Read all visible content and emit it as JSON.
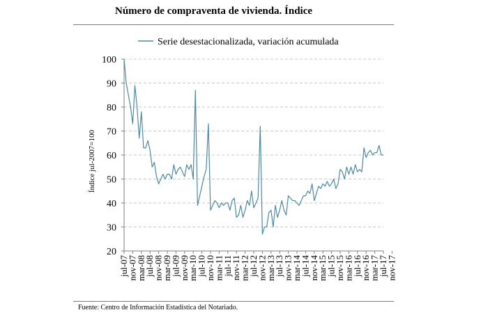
{
  "header": {
    "title": "Número de compraventa de vivienda. Índice"
  },
  "footer": {
    "source": "Fuente: Centro de Información Estadística del Notariado."
  },
  "colors": {
    "series": "#4a8aa5",
    "rule": "#4a8aa5",
    "grid": "#c8c8c8",
    "axis": "#7f7f7f"
  },
  "chart_data": {
    "type": "line",
    "title": "Número de compraventa de vivienda. Índice",
    "xlabel": "",
    "ylabel": "Índice jul-2007=100",
    "ylim": [
      20,
      100
    ],
    "yticks": [
      20,
      30,
      40,
      50,
      60,
      70,
      80,
      90,
      100
    ],
    "grid": true,
    "legend_position": "top",
    "x_tick_labels": [
      "jul-07",
      "nov-07",
      "mar-08",
      "jul-08",
      "nov-08",
      "mar-09",
      "jul-09",
      "nov-09",
      "mar-10",
      "jul-10",
      "nov-10",
      "mar-11",
      "jul-11",
      "nov-11",
      "mar-12",
      "jul-12",
      "nov-12",
      "mar-13",
      "jul-13",
      "nov-13",
      "mar-14",
      "jul-14",
      "nov-14",
      "mar-15",
      "jul-15",
      "nov-15",
      "mar-16",
      "jul-16",
      "nov-16",
      "mar-17",
      "jul-17",
      "nov-17"
    ],
    "series": [
      {
        "name": "Serie desestacionalizada, variación acumulada",
        "values": [
          100,
          90,
          85,
          80,
          73,
          89,
          80,
          67,
          78,
          63,
          63,
          66,
          62,
          55,
          57,
          51,
          48,
          50,
          52,
          50,
          52,
          52,
          50,
          56,
          52,
          54,
          55,
          53,
          51,
          56,
          54,
          56,
          50,
          87,
          39,
          43,
          47,
          51,
          54,
          73,
          37,
          39,
          41,
          40,
          38,
          40,
          39,
          40,
          40,
          37,
          41,
          42,
          34,
          35,
          39,
          34,
          37,
          41,
          39,
          45,
          38,
          40,
          42,
          72,
          27,
          30,
          30,
          36,
          37,
          30,
          39,
          34,
          37,
          41,
          37,
          35,
          43,
          42,
          41,
          41,
          40,
          39,
          41,
          43,
          43,
          45,
          44,
          48,
          41,
          44,
          47,
          46,
          48,
          47,
          49,
          47,
          48,
          50,
          46,
          48,
          54,
          53,
          50,
          55,
          52,
          55,
          52,
          56,
          53,
          54,
          53,
          63,
          59,
          61,
          62,
          60,
          61,
          61,
          64,
          60,
          60
        ]
      }
    ]
  }
}
